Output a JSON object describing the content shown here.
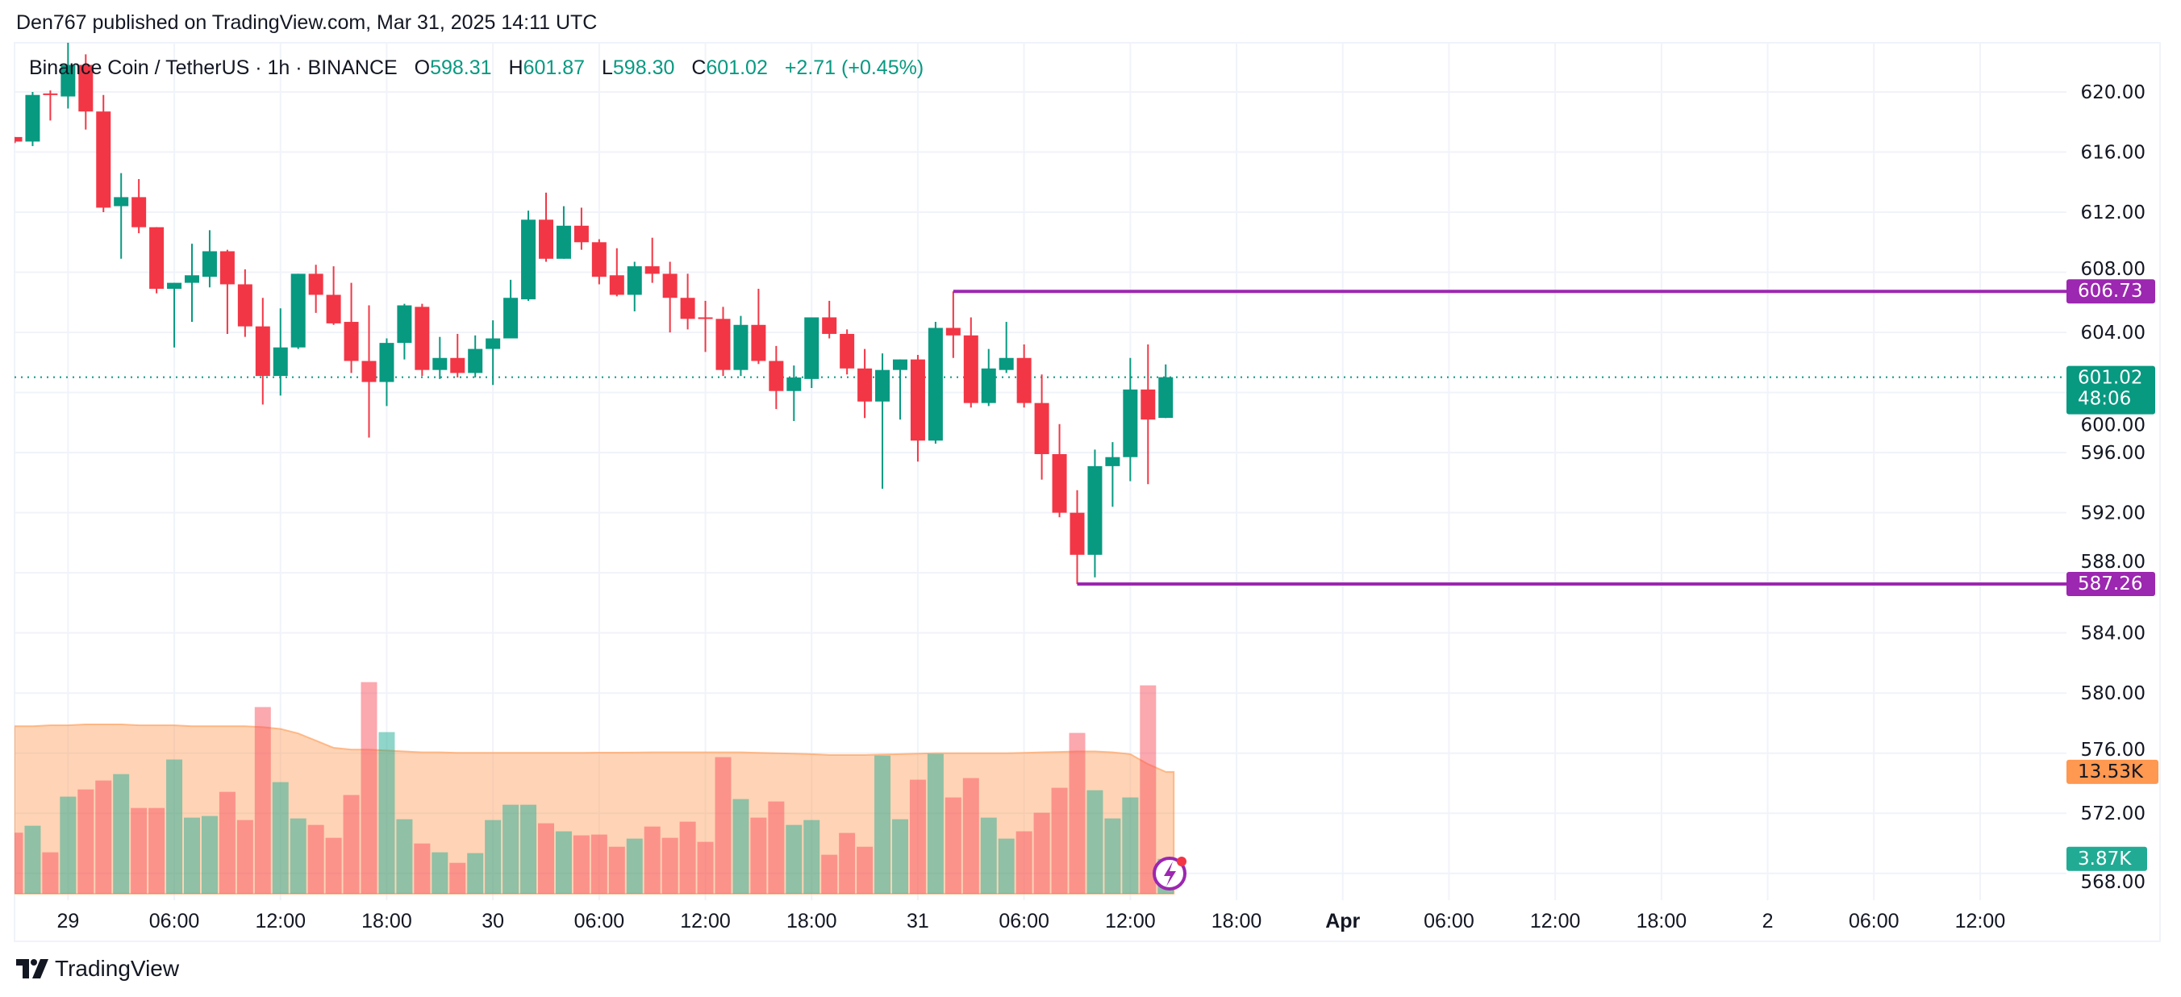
{
  "header": {
    "published": "Den767 published on TradingView.com, Mar 31, 2025 14:11 UTC"
  },
  "legend": {
    "symbol": "Binance Coin / TetherUS · 1h · BINANCE",
    "o_label": "O",
    "o_value": "598.31",
    "h_label": "H",
    "h_value": "601.87",
    "l_label": "L",
    "l_value": "598.30",
    "c_label": "C",
    "c_value": "601.02",
    "change": "+2.71 (+0.45%)"
  },
  "colors": {
    "up": "#089981",
    "down": "#F23645",
    "volume_up": "#22AB94",
    "volume_down": "#F7525F",
    "volume_ma": "#FF9850",
    "level_line": "#9C27B0",
    "grid": "#F0F3FA",
    "current_price": "#089981"
  },
  "price_axis": {
    "ticks": [
      "620.00",
      "616.00",
      "612.00",
      "608.00",
      "604.00",
      "600.00",
      "596.00",
      "592.00",
      "588.00",
      "584.00",
      "580.00",
      "576.00",
      "572.00",
      "568.00"
    ]
  },
  "price_labels": {
    "resistance": "606.73",
    "support": "587.26",
    "current_price": "601.02",
    "countdown": "48:06",
    "volume_ma": "13.53K",
    "volume": "3.87K"
  },
  "time_axis": {
    "ticks": [
      {
        "label": "29",
        "t": "03-29 00:00",
        "bold": false
      },
      {
        "label": "06:00",
        "t": "03-29 06:00",
        "bold": false
      },
      {
        "label": "12:00",
        "t": "03-29 12:00",
        "bold": false
      },
      {
        "label": "18:00",
        "t": "03-29 18:00",
        "bold": false
      },
      {
        "label": "30",
        "t": "03-30 00:00",
        "bold": false
      },
      {
        "label": "06:00",
        "t": "03-30 06:00",
        "bold": false
      },
      {
        "label": "12:00",
        "t": "03-30 12:00",
        "bold": false
      },
      {
        "label": "18:00",
        "t": "03-30 18:00",
        "bold": false
      },
      {
        "label": "31",
        "t": "03-31 00:00",
        "bold": false
      },
      {
        "label": "06:00",
        "t": "03-31 06:00",
        "bold": false
      },
      {
        "label": "12:00",
        "t": "03-31 12:00",
        "bold": false
      },
      {
        "label": "18:00",
        "t": "03-31 18:00",
        "bold": false
      },
      {
        "label": "Apr",
        "t": "04-01 00:00",
        "bold": true
      },
      {
        "label": "06:00",
        "t": "04-01 06:00",
        "bold": false
      },
      {
        "label": "12:00",
        "t": "04-01 12:00",
        "bold": false
      },
      {
        "label": "18:00",
        "t": "04-01 18:00",
        "bold": false
      },
      {
        "label": "2",
        "t": "04-02 00:00",
        "bold": false
      },
      {
        "label": "06:00",
        "t": "04-02 06:00",
        "bold": false
      },
      {
        "label": "12:00",
        "t": "04-02 12:00",
        "bold": false
      }
    ]
  },
  "chart_data": {
    "type": "candlestick",
    "interval": "1h",
    "ylim": [
      566,
      624
    ],
    "levels": [
      {
        "price": 606.73,
        "from": "03-31 02:00"
      },
      {
        "price": 587.26,
        "from": "03-31 09:00"
      }
    ],
    "current_price": 601.02,
    "candles": [
      {
        "t": "03-28 21:00",
        "o": 617.0,
        "h": 617.0,
        "l": 616.6,
        "c": 616.7,
        "v": 6.78,
        "ma": 18.6
      },
      {
        "t": "03-28 22:00",
        "o": 616.7,
        "h": 620.0,
        "l": 616.4,
        "c": 619.8,
        "v": 7.55,
        "ma": 18.6
      },
      {
        "t": "03-28 23:00",
        "o": 619.9,
        "h": 620.1,
        "l": 618.1,
        "c": 619.8,
        "v": 4.6,
        "ma": 18.7
      },
      {
        "t": "03-29 00:00",
        "o": 619.7,
        "h": 623.3,
        "l": 618.9,
        "c": 621.8,
        "v": 10.78,
        "ma": 18.7
      },
      {
        "t": "03-29 01:00",
        "o": 621.8,
        "h": 622.5,
        "l": 617.5,
        "c": 618.7,
        "v": 11.58,
        "ma": 18.8
      },
      {
        "t": "03-29 02:00",
        "o": 618.7,
        "h": 619.8,
        "l": 612.0,
        "c": 612.3,
        "v": 12.57,
        "ma": 18.8
      },
      {
        "t": "03-29 03:00",
        "o": 612.4,
        "h": 614.6,
        "l": 608.9,
        "c": 613.0,
        "v": 13.28,
        "ma": 18.8
      },
      {
        "t": "03-29 04:00",
        "o": 613.0,
        "h": 614.2,
        "l": 610.6,
        "c": 611.0,
        "v": 9.52,
        "ma": 18.7
      },
      {
        "t": "03-29 05:00",
        "o": 611.0,
        "h": 611.0,
        "l": 606.6,
        "c": 606.9,
        "v": 9.52,
        "ma": 18.7
      },
      {
        "t": "03-29 06:00",
        "o": 606.9,
        "h": 607.3,
        "l": 603.0,
        "c": 607.3,
        "v": 14.9,
        "ma": 18.7
      },
      {
        "t": "03-29 07:00",
        "o": 607.3,
        "h": 609.9,
        "l": 604.7,
        "c": 607.8,
        "v": 8.45,
        "ma": 18.6
      },
      {
        "t": "03-29 08:00",
        "o": 607.7,
        "h": 610.8,
        "l": 607.0,
        "c": 609.4,
        "v": 8.63,
        "ma": 18.6
      },
      {
        "t": "03-29 09:00",
        "o": 609.4,
        "h": 609.5,
        "l": 603.9,
        "c": 607.2,
        "v": 11.31,
        "ma": 18.6
      },
      {
        "t": "03-29 10:00",
        "o": 607.2,
        "h": 608.2,
        "l": 603.7,
        "c": 604.4,
        "v": 8.18,
        "ma": 18.6
      },
      {
        "t": "03-29 11:00",
        "o": 604.4,
        "h": 606.3,
        "l": 599.2,
        "c": 601.1,
        "v": 20.72,
        "ma": 18.5
      },
      {
        "t": "03-29 12:00",
        "o": 601.1,
        "h": 605.6,
        "l": 599.8,
        "c": 603.0,
        "v": 12.39,
        "ma": 18.3
      },
      {
        "t": "03-29 13:00",
        "o": 603.0,
        "h": 607.9,
        "l": 602.9,
        "c": 607.9,
        "v": 8.36,
        "ma": 17.8
      },
      {
        "t": "03-29 14:00",
        "o": 607.9,
        "h": 608.5,
        "l": 605.3,
        "c": 606.5,
        "v": 7.64,
        "ma": 17.0
      },
      {
        "t": "03-29 15:00",
        "o": 606.5,
        "h": 608.4,
        "l": 604.5,
        "c": 604.6,
        "v": 6.21,
        "ma": 16.2
      },
      {
        "t": "03-29 16:00",
        "o": 604.7,
        "h": 607.3,
        "l": 601.3,
        "c": 602.1,
        "v": 10.96,
        "ma": 16.0
      },
      {
        "t": "03-29 17:00",
        "o": 602.1,
        "h": 605.8,
        "l": 597.0,
        "c": 600.7,
        "v": 23.49,
        "ma": 16.0
      },
      {
        "t": "03-29 18:00",
        "o": 600.7,
        "h": 603.6,
        "l": 599.1,
        "c": 603.3,
        "v": 17.94,
        "ma": 15.9
      },
      {
        "t": "03-29 19:00",
        "o": 603.3,
        "h": 605.9,
        "l": 602.2,
        "c": 605.8,
        "v": 8.27,
        "ma": 15.8
      },
      {
        "t": "03-29 20:00",
        "o": 605.7,
        "h": 605.9,
        "l": 601.1,
        "c": 601.5,
        "v": 5.58,
        "ma": 15.7
      },
      {
        "t": "03-29 21:00",
        "o": 601.5,
        "h": 603.7,
        "l": 600.9,
        "c": 602.3,
        "v": 4.6,
        "ma": 15.7
      },
      {
        "t": "03-29 22:00",
        "o": 602.3,
        "h": 603.9,
        "l": 601.0,
        "c": 601.3,
        "v": 3.43,
        "ma": 15.65
      },
      {
        "t": "03-29 23:00",
        "o": 601.3,
        "h": 603.8,
        "l": 601.0,
        "c": 602.9,
        "v": 4.51,
        "ma": 15.65
      },
      {
        "t": "03-30 00:00",
        "o": 602.9,
        "h": 604.8,
        "l": 600.5,
        "c": 603.6,
        "v": 8.18,
        "ma": 15.65
      },
      {
        "t": "03-30 01:00",
        "o": 603.6,
        "h": 607.5,
        "l": 603.6,
        "c": 606.3,
        "v": 9.88,
        "ma": 15.65
      },
      {
        "t": "03-30 02:00",
        "o": 606.2,
        "h": 612.1,
        "l": 606.1,
        "c": 611.5,
        "v": 9.88,
        "ma": 15.65
      },
      {
        "t": "03-30 03:00",
        "o": 611.5,
        "h": 613.3,
        "l": 608.7,
        "c": 608.9,
        "v": 7.82,
        "ma": 15.65
      },
      {
        "t": "03-30 04:00",
        "o": 608.9,
        "h": 612.4,
        "l": 608.9,
        "c": 611.1,
        "v": 6.93,
        "ma": 15.65
      },
      {
        "t": "03-30 05:00",
        "o": 611.1,
        "h": 612.3,
        "l": 609.5,
        "c": 610.0,
        "v": 6.48,
        "ma": 15.65
      },
      {
        "t": "03-30 06:00",
        "o": 610.0,
        "h": 610.2,
        "l": 607.2,
        "c": 607.7,
        "v": 6.57,
        "ma": 15.67
      },
      {
        "t": "03-30 07:00",
        "o": 607.8,
        "h": 609.6,
        "l": 606.4,
        "c": 606.5,
        "v": 5.22,
        "ma": 15.67
      },
      {
        "t": "03-30 08:00",
        "o": 606.5,
        "h": 608.7,
        "l": 605.4,
        "c": 608.4,
        "v": 6.12,
        "ma": 15.68
      },
      {
        "t": "03-30 09:00",
        "o": 608.4,
        "h": 610.3,
        "l": 607.3,
        "c": 607.9,
        "v": 7.46,
        "ma": 15.7
      },
      {
        "t": "03-30 10:00",
        "o": 607.9,
        "h": 608.7,
        "l": 604.0,
        "c": 606.3,
        "v": 6.21,
        "ma": 15.7
      },
      {
        "t": "03-30 11:00",
        "o": 606.3,
        "h": 607.9,
        "l": 604.2,
        "c": 604.9,
        "v": 8.0,
        "ma": 15.7
      },
      {
        "t": "03-30 12:00",
        "o": 605.0,
        "h": 606.1,
        "l": 602.7,
        "c": 604.9,
        "v": 5.76,
        "ma": 15.7
      },
      {
        "t": "03-30 13:00",
        "o": 604.9,
        "h": 605.7,
        "l": 601.1,
        "c": 601.5,
        "v": 15.16,
        "ma": 15.7
      },
      {
        "t": "03-30 14:00",
        "o": 601.5,
        "h": 605.1,
        "l": 601.1,
        "c": 604.5,
        "v": 10.51,
        "ma": 15.7
      },
      {
        "t": "03-30 15:00",
        "o": 604.5,
        "h": 606.9,
        "l": 601.9,
        "c": 602.1,
        "v": 8.45,
        "ma": 15.65
      },
      {
        "t": "03-30 16:00",
        "o": 602.1,
        "h": 603.1,
        "l": 598.9,
        "c": 600.1,
        "v": 10.24,
        "ma": 15.6
      },
      {
        "t": "03-30 17:00",
        "o": 600.1,
        "h": 601.8,
        "l": 598.1,
        "c": 601.0,
        "v": 7.64,
        "ma": 15.55
      },
      {
        "t": "03-30 18:00",
        "o": 600.9,
        "h": 605.0,
        "l": 600.3,
        "c": 605.0,
        "v": 8.18,
        "ma": 15.5
      },
      {
        "t": "03-30 19:00",
        "o": 605.0,
        "h": 606.1,
        "l": 603.6,
        "c": 603.9,
        "v": 4.33,
        "ma": 15.4
      },
      {
        "t": "03-30 20:00",
        "o": 603.9,
        "h": 604.2,
        "l": 601.2,
        "c": 601.6,
        "v": 6.75,
        "ma": 15.4
      },
      {
        "t": "03-30 21:00",
        "o": 601.6,
        "h": 602.9,
        "l": 598.3,
        "c": 599.4,
        "v": 5.22,
        "ma": 15.4
      },
      {
        "t": "03-30 22:00",
        "o": 599.4,
        "h": 602.6,
        "l": 593.6,
        "c": 601.5,
        "v": 15.34,
        "ma": 15.45
      },
      {
        "t": "03-30 23:00",
        "o": 601.5,
        "h": 602.2,
        "l": 598.2,
        "c": 602.2,
        "v": 8.27,
        "ma": 15.5
      },
      {
        "t": "03-31 00:00",
        "o": 602.2,
        "h": 602.5,
        "l": 595.4,
        "c": 596.8,
        "v": 12.66,
        "ma": 15.55
      },
      {
        "t": "03-31 01:00",
        "o": 596.8,
        "h": 604.7,
        "l": 596.6,
        "c": 604.3,
        "v": 15.52,
        "ma": 15.6
      },
      {
        "t": "03-31 02:00",
        "o": 604.3,
        "h": 606.73,
        "l": 602.3,
        "c": 603.8,
        "v": 10.69,
        "ma": 15.6
      },
      {
        "t": "03-31 03:00",
        "o": 603.8,
        "h": 605.0,
        "l": 599.0,
        "c": 599.3,
        "v": 12.84,
        "ma": 15.6
      },
      {
        "t": "03-31 04:00",
        "o": 599.3,
        "h": 602.9,
        "l": 599.1,
        "c": 601.6,
        "v": 8.45,
        "ma": 15.6
      },
      {
        "t": "03-31 05:00",
        "o": 601.5,
        "h": 604.7,
        "l": 601.3,
        "c": 602.3,
        "v": 6.12,
        "ma": 15.6
      },
      {
        "t": "03-31 06:00",
        "o": 602.3,
        "h": 603.2,
        "l": 599.0,
        "c": 599.3,
        "v": 6.93,
        "ma": 15.65
      },
      {
        "t": "03-31 07:00",
        "o": 599.3,
        "h": 601.2,
        "l": 594.2,
        "c": 595.9,
        "v": 8.99,
        "ma": 15.7
      },
      {
        "t": "03-31 08:00",
        "o": 595.9,
        "h": 597.9,
        "l": 591.7,
        "c": 592.0,
        "v": 11.76,
        "ma": 15.75
      },
      {
        "t": "03-31 09:00",
        "o": 592.0,
        "h": 593.5,
        "l": 587.26,
        "c": 589.2,
        "v": 17.85,
        "ma": 15.8
      },
      {
        "t": "03-31 10:00",
        "o": 589.2,
        "h": 596.2,
        "l": 587.7,
        "c": 595.1,
        "v": 11.49,
        "ma": 15.8
      },
      {
        "t": "03-31 11:00",
        "o": 595.1,
        "h": 596.7,
        "l": 592.4,
        "c": 595.7,
        "v": 8.36,
        "ma": 15.7
      },
      {
        "t": "03-31 12:00",
        "o": 595.7,
        "h": 602.3,
        "l": 594.1,
        "c": 600.2,
        "v": 10.69,
        "ma": 15.5
      },
      {
        "t": "03-31 13:00",
        "o": 600.2,
        "h": 603.2,
        "l": 593.9,
        "c": 598.2,
        "v": 23.13,
        "ma": 14.4
      },
      {
        "t": "03-31 14:00",
        "o": 598.31,
        "h": 601.87,
        "l": 598.3,
        "c": 601.02,
        "v": 3.87,
        "ma": 13.53
      }
    ]
  },
  "footer": {
    "logo_text": "TradingView"
  }
}
